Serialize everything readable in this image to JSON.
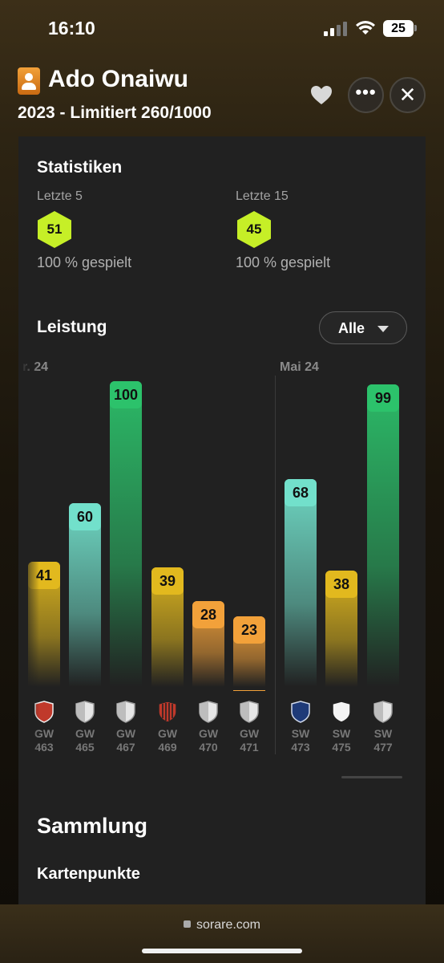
{
  "status_bar": {
    "time": "16:10",
    "battery": "25"
  },
  "header": {
    "player_name": "Ado Onaiwu",
    "card_subtitle": "2023 - Limitiert 260/1000",
    "icons": {
      "player": "player-card-icon",
      "favorite": "heart-icon",
      "more": "more-icon",
      "close": "close-icon"
    }
  },
  "stats": {
    "title": "Statistiken",
    "last5": {
      "label": "Letzte 5",
      "score": "51",
      "played": "100 % gespielt"
    },
    "last15": {
      "label": "Letzte 15",
      "score": "45",
      "played": "100 % gespielt"
    },
    "score_color": "#c6ef27"
  },
  "performance": {
    "title": "Leistung",
    "filter": "Alle",
    "months": [
      "r. 24",
      "Mai 24"
    ]
  },
  "chart_data": {
    "type": "bar",
    "title": "Leistung",
    "categories": [
      "GW 463",
      "GW 465",
      "GW 467",
      "GW 469",
      "GW 470",
      "GW 471",
      "SW 473",
      "SW 475",
      "SW 477"
    ],
    "values": [
      41,
      60,
      100,
      39,
      28,
      23,
      68,
      38,
      99
    ],
    "ylim": [
      0,
      100
    ],
    "categories_top": [
      "GW",
      "GW",
      "GW",
      "GW",
      "GW",
      "GW",
      "SW",
      "SW",
      "SW"
    ],
    "categories_bottom": [
      "463",
      "465",
      "467",
      "469",
      "470",
      "471",
      "473",
      "475",
      "477"
    ],
    "value_labels": [
      "41",
      "60",
      "100",
      "39",
      "28",
      "23",
      "68",
      "38",
      "99"
    ],
    "colors": [
      "#e2b91e",
      "#72e0cb",
      "#2cc26b",
      "#e2b91e",
      "#f2a13a",
      "#f2a13a",
      "#72e0cb",
      "#e2b91e",
      "#2cc26b"
    ],
    "clubs": [
      "club-crest-icon",
      "shield-icon",
      "shield-icon",
      "club-crest-icon",
      "shield-icon",
      "shield-icon",
      "club-crest-icon",
      "club-crest-icon",
      "shield-icon"
    ]
  },
  "collection": {
    "title": "Sammlung",
    "subtitle": "Kartenpunkte"
  },
  "browser": {
    "url": "sorare.com"
  }
}
